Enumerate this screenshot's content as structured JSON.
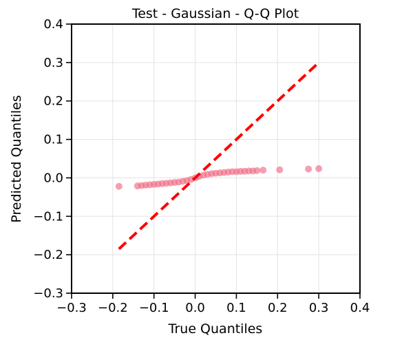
{
  "chart_data": {
    "type": "scatter",
    "title": "Test - Gaussian - Q-Q Plot",
    "xlabel": "True Quantiles",
    "ylabel": "Predicted Quantiles",
    "xlim": [
      -0.3,
      0.4
    ],
    "ylim": [
      -0.3,
      0.4
    ],
    "x_ticks": [
      "−0.3",
      "−0.2",
      "−0.1",
      "0.0",
      "0.1",
      "0.2",
      "0.3",
      "0.4"
    ],
    "y_ticks": [
      "−0.3",
      "−0.2",
      "−0.1",
      "0.0",
      "0.1",
      "0.2",
      "0.3",
      "0.4"
    ],
    "grid": true,
    "point_color": "#f06b86",
    "reference_line": {
      "style": "dashed",
      "color": "#ff0000",
      "from": [
        -0.185,
        -0.185
      ],
      "to": [
        0.3,
        0.3
      ]
    },
    "points": {
      "x": [
        -0.185,
        -0.14,
        -0.13,
        -0.12,
        -0.11,
        -0.1,
        -0.09,
        -0.08,
        -0.07,
        -0.06,
        -0.05,
        -0.04,
        -0.03,
        -0.02,
        -0.01,
        0.0,
        0.01,
        0.02,
        0.03,
        0.04,
        0.05,
        0.06,
        0.07,
        0.08,
        0.09,
        0.1,
        0.11,
        0.12,
        0.13,
        0.14,
        0.15,
        0.165,
        0.205,
        0.275,
        0.3
      ],
      "y": [
        -0.022,
        -0.021,
        -0.02,
        -0.019,
        -0.018,
        -0.017,
        -0.016,
        -0.015,
        -0.014,
        -0.013,
        -0.012,
        -0.011,
        -0.009,
        -0.007,
        -0.004,
        0.0,
        0.004,
        0.007,
        0.009,
        0.011,
        0.012,
        0.013,
        0.014,
        0.015,
        0.016,
        0.016,
        0.017,
        0.017,
        0.018,
        0.018,
        0.019,
        0.02,
        0.021,
        0.023,
        0.024
      ]
    }
  }
}
